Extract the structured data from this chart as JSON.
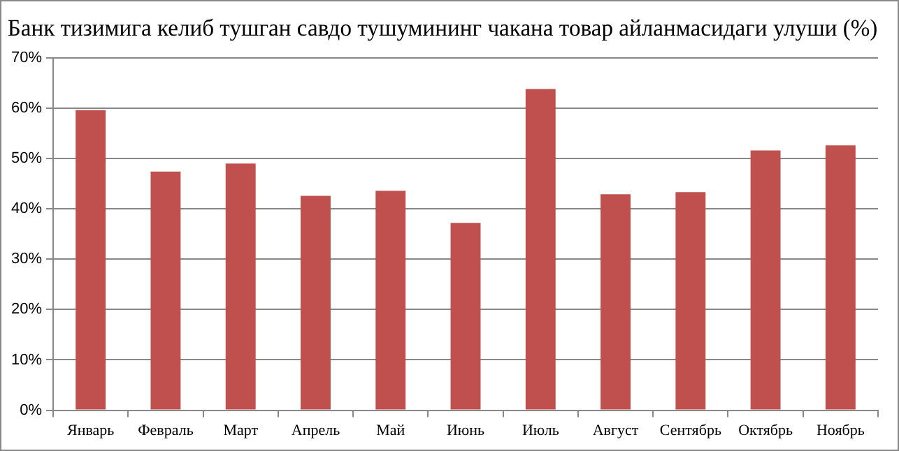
{
  "chart_data": {
    "type": "bar",
    "title": "Банк тизимига келиб тушган савдо тушумининг чакана товар айланмасидаги улуши (%)",
    "categories": [
      "Январь",
      "Февраль",
      "Март",
      "Апрель",
      "Май",
      "Июнь",
      "Июль",
      "Август",
      "Сентябрь",
      "Октябрь",
      "Ноябрь"
    ],
    "values": [
      59.6,
      47.4,
      49.0,
      42.6,
      43.6,
      37.2,
      63.8,
      42.9,
      43.3,
      51.6,
      52.6
    ],
    "color": "#c0504d",
    "ylim": [
      0,
      70
    ],
    "yticks": [
      {
        "value": 0,
        "label": "0%"
      },
      {
        "value": 10,
        "label": "10%"
      },
      {
        "value": 20,
        "label": "20%"
      },
      {
        "value": 30,
        "label": "30%"
      },
      {
        "value": 40,
        "label": "40%"
      },
      {
        "value": 50,
        "label": "50%"
      },
      {
        "value": 60,
        "label": "60%"
      },
      {
        "value": 70,
        "label": "70%"
      }
    ],
    "grid": "y",
    "legend": false
  }
}
